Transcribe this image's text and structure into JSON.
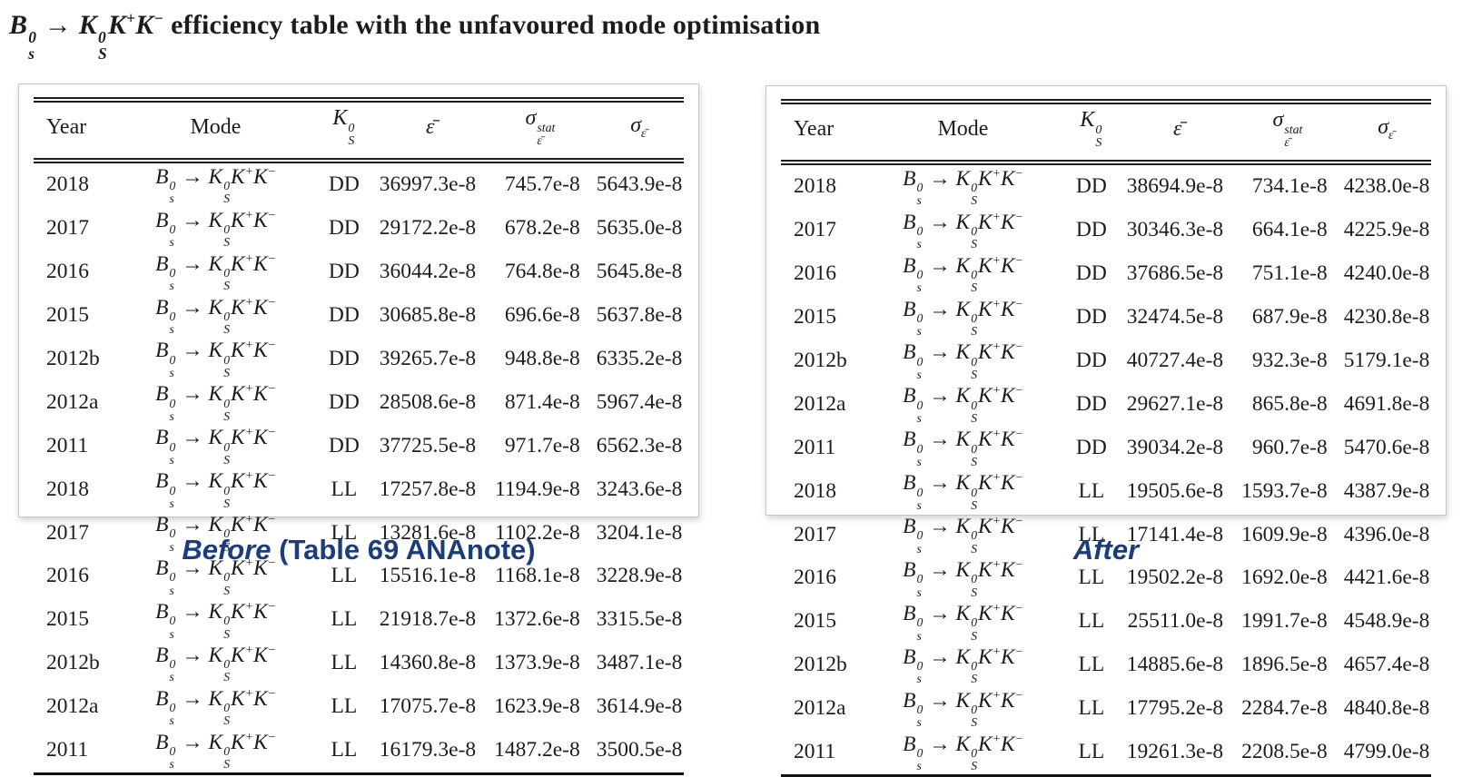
{
  "title": {
    "math": "B^{0}_{s} → K^{0}_{S}K^{+}K^{−}",
    "text": "efficiency table with the unfavoured mode optimisation"
  },
  "columns": [
    "Year",
    "Mode",
    "K^{0}_{S}",
    "ε̄",
    "σ^{stat}_{ε̄}",
    "σ_{ε̄}"
  ],
  "mode": "B^{0}_{s} → K^{0}_{S}K^{+}K^{−}",
  "colors": {
    "caption_blue": "#1b3d7c",
    "text": "#1c1c1c"
  },
  "tables": {
    "before": {
      "caption_em": "Before",
      "caption_rest": " (Table 69 ANAnote)",
      "rows": [
        {
          "year": "2018",
          "ks": "DD",
          "eps": "36997.3e-8",
          "stat": "745.7e-8",
          "sigma": "5643.9e-8"
        },
        {
          "year": "2017",
          "ks": "DD",
          "eps": "29172.2e-8",
          "stat": "678.2e-8",
          "sigma": "5635.0e-8"
        },
        {
          "year": "2016",
          "ks": "DD",
          "eps": "36044.2e-8",
          "stat": "764.8e-8",
          "sigma": "5645.8e-8"
        },
        {
          "year": "2015",
          "ks": "DD",
          "eps": "30685.8e-8",
          "stat": "696.6e-8",
          "sigma": "5637.8e-8"
        },
        {
          "year": "2012b",
          "ks": "DD",
          "eps": "39265.7e-8",
          "stat": "948.8e-8",
          "sigma": "6335.2e-8"
        },
        {
          "year": "2012a",
          "ks": "DD",
          "eps": "28508.6e-8",
          "stat": "871.4e-8",
          "sigma": "5967.4e-8"
        },
        {
          "year": "2011",
          "ks": "DD",
          "eps": "37725.5e-8",
          "stat": "971.7e-8",
          "sigma": "6562.3e-8"
        },
        {
          "year": "2018",
          "ks": "LL",
          "eps": "17257.8e-8",
          "stat": "1194.9e-8",
          "sigma": "3243.6e-8"
        },
        {
          "year": "2017",
          "ks": "LL",
          "eps": "13281.6e-8",
          "stat": "1102.2e-8",
          "sigma": "3204.1e-8"
        },
        {
          "year": "2016",
          "ks": "LL",
          "eps": "15516.1e-8",
          "stat": "1168.1e-8",
          "sigma": "3228.9e-8"
        },
        {
          "year": "2015",
          "ks": "LL",
          "eps": "21918.7e-8",
          "stat": "1372.6e-8",
          "sigma": "3315.5e-8"
        },
        {
          "year": "2012b",
          "ks": "LL",
          "eps": "14360.8e-8",
          "stat": "1373.9e-8",
          "sigma": "3487.1e-8"
        },
        {
          "year": "2012a",
          "ks": "LL",
          "eps": "17075.7e-8",
          "stat": "1623.9e-8",
          "sigma": "3614.9e-8"
        },
        {
          "year": "2011",
          "ks": "LL",
          "eps": "16179.3e-8",
          "stat": "1487.2e-8",
          "sigma": "3500.5e-8"
        }
      ]
    },
    "after": {
      "caption_em": "After",
      "caption_rest": "",
      "rows": [
        {
          "year": "2018",
          "ks": "DD",
          "eps": "38694.9e-8",
          "stat": "734.1e-8",
          "sigma": "4238.0e-8"
        },
        {
          "year": "2017",
          "ks": "DD",
          "eps": "30346.3e-8",
          "stat": "664.1e-8",
          "sigma": "4225.9e-8"
        },
        {
          "year": "2016",
          "ks": "DD",
          "eps": "37686.5e-8",
          "stat": "751.1e-8",
          "sigma": "4240.0e-8"
        },
        {
          "year": "2015",
          "ks": "DD",
          "eps": "32474.5e-8",
          "stat": "687.9e-8",
          "sigma": "4230.8e-8"
        },
        {
          "year": "2012b",
          "ks": "DD",
          "eps": "40727.4e-8",
          "stat": "932.3e-8",
          "sigma": "5179.1e-8"
        },
        {
          "year": "2012a",
          "ks": "DD",
          "eps": "29627.1e-8",
          "stat": "865.8e-8",
          "sigma": "4691.8e-8"
        },
        {
          "year": "2011",
          "ks": "DD",
          "eps": "39034.2e-8",
          "stat": "960.7e-8",
          "sigma": "5470.6e-8"
        },
        {
          "year": "2018",
          "ks": "LL",
          "eps": "19505.6e-8",
          "stat": "1593.7e-8",
          "sigma": "4387.9e-8"
        },
        {
          "year": "2017",
          "ks": "LL",
          "eps": "17141.4e-8",
          "stat": "1609.9e-8",
          "sigma": "4396.0e-8"
        },
        {
          "year": "2016",
          "ks": "LL",
          "eps": "19502.2e-8",
          "stat": "1692.0e-8",
          "sigma": "4421.6e-8"
        },
        {
          "year": "2015",
          "ks": "LL",
          "eps": "25511.0e-8",
          "stat": "1991.7e-8",
          "sigma": "4548.9e-8"
        },
        {
          "year": "2012b",
          "ks": "LL",
          "eps": "14885.6e-8",
          "stat": "1896.5e-8",
          "sigma": "4657.4e-8"
        },
        {
          "year": "2012a",
          "ks": "LL",
          "eps": "17795.2e-8",
          "stat": "2284.7e-8",
          "sigma": "4840.8e-8"
        },
        {
          "year": "2011",
          "ks": "LL",
          "eps": "19261.3e-8",
          "stat": "2208.5e-8",
          "sigma": "4799.0e-8"
        }
      ]
    }
  }
}
